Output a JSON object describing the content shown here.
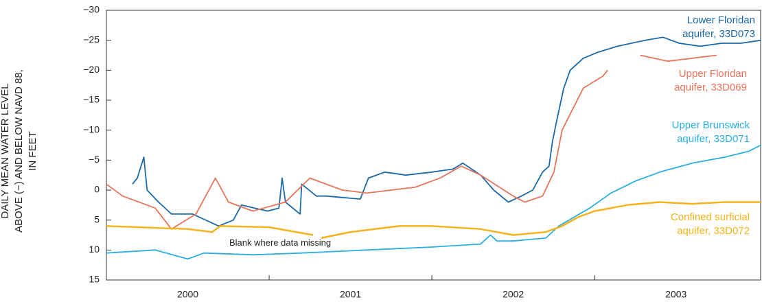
{
  "chart_data": {
    "type": "line",
    "y_label": "DAILY MEAN WATER LEVEL\nABOVE (−) AND BELOW NAVD 88,\nIN FEET",
    "annotation": "Blank where data missing",
    "xlim": [
      2000,
      2004.02
    ],
    "xticks": [
      2000,
      2001,
      2002,
      2003
    ],
    "ylim": [
      15,
      -30
    ],
    "yticks": [
      {
        "value": -30,
        "label": "−30"
      },
      {
        "value": -25,
        "label": "−25"
      },
      {
        "value": -20,
        "label": "−20"
      },
      {
        "value": -15,
        "label": "−15"
      },
      {
        "value": -10,
        "label": "−10"
      },
      {
        "value": -5,
        "label": "−5"
      },
      0,
      5,
      10,
      15
    ],
    "series": [
      {
        "name": "Lower Floridan\naquifer, 33D073",
        "color": "#1b68a8",
        "x": [
          2000.16,
          2000.19,
          2000.23,
          2000.25,
          2000.32,
          2000.4,
          2000.53,
          2000.61,
          2000.69,
          2000.78,
          2000.83,
          2000.91,
          2000.99,
          2001.06,
          2001.08,
          2001.1,
          2001.19,
          2001.2,
          2001.29,
          2001.35,
          2001.56,
          2001.61,
          2001.71,
          2001.84,
          2002.0,
          2002.13,
          2002.19,
          2002.3,
          2002.38,
          2002.47,
          2002.55,
          2002.62,
          2002.68,
          2002.72,
          2002.74,
          2002.77,
          2002.81,
          2002.85,
          2002.93,
          2003.02,
          2003.14,
          2003.31,
          2003.42,
          2003.52,
          2003.65,
          2003.78,
          2003.9,
          2004.02
        ],
        "values": [
          -1,
          -2,
          -5.5,
          0,
          2,
          4,
          4,
          5,
          6,
          5,
          2.5,
          3,
          3.5,
          3,
          -2,
          2,
          4,
          -1,
          1,
          1,
          1.5,
          -2,
          -3,
          -2.5,
          -3,
          -3.5,
          -4.5,
          -2.5,
          0,
          2,
          1,
          0,
          -3,
          -4,
          -8,
          -12,
          -17,
          -20,
          -22,
          -23,
          -24,
          -25,
          -25.5,
          -24.5,
          -24,
          -24.5,
          -24.5,
          -25
        ]
      },
      {
        "name": "Upper Floridan\naquifer, 33D069",
        "color": "#e8735a",
        "x": [
          2000.0,
          2000.1,
          2000.3,
          2000.4,
          2000.55,
          2000.67,
          2000.75,
          2000.9,
          2001.1,
          2001.25,
          2001.45,
          2001.6,
          2001.9,
          2002.05,
          2002.18,
          2002.3,
          2002.5,
          2002.57,
          2002.68,
          2002.75,
          2002.8,
          2002.93,
          2003.05,
          2003.08,
          2003.2,
          2003.28,
          2003.45,
          2003.6,
          2003.75
        ],
        "values": [
          -1,
          1,
          3,
          6.5,
          4,
          -2,
          2,
          3.5,
          2,
          -2,
          0,
          0.5,
          -0.5,
          -2,
          -4,
          -2.5,
          1,
          2,
          1,
          -3,
          -10,
          -17,
          -19,
          -20,
          null,
          -22.5,
          -21.5,
          -22,
          -22.5
        ]
      },
      {
        "name": "Upper Brunswick\naquifer, 33D071",
        "color": "#29aee0",
        "x": [
          2000.0,
          2000.3,
          2000.5,
          2000.6,
          2000.9,
          2001.2,
          2001.6,
          2002.0,
          2002.3,
          2002.36,
          2002.4,
          2002.5,
          2002.7,
          2002.78,
          2002.97,
          2003.1,
          2003.25,
          2003.4,
          2003.6,
          2003.8,
          2003.95,
          2004.02
        ],
        "values": [
          10.5,
          10,
          11.5,
          10.5,
          10.8,
          10.5,
          10,
          9.5,
          9,
          7.5,
          8.5,
          8.5,
          8,
          6,
          3,
          0.5,
          -1.5,
          -3,
          -4.5,
          -5.5,
          -6.5,
          -7.5
        ]
      },
      {
        "name": "Confined surficial\naquifer, 33D072",
        "color": "#f5b21b",
        "x": [
          2000.0,
          2000.3,
          2000.5,
          2000.65,
          2000.7,
          2001.0,
          2001.27,
          2001.3,
          2001.32,
          2001.5,
          2001.8,
          2002.0,
          2002.3,
          2002.5,
          2002.7,
          2002.8,
          2002.9,
          2003.0,
          2003.2,
          2003.4,
          2003.6,
          2003.8,
          2004.02
        ],
        "values": [
          6,
          6.3,
          6.5,
          7,
          6,
          6.2,
          7.5,
          null,
          8,
          7,
          6,
          6,
          6.5,
          7.5,
          7,
          6,
          4.5,
          3.5,
          2.5,
          2,
          2.3,
          2,
          2
        ]
      }
    ]
  }
}
